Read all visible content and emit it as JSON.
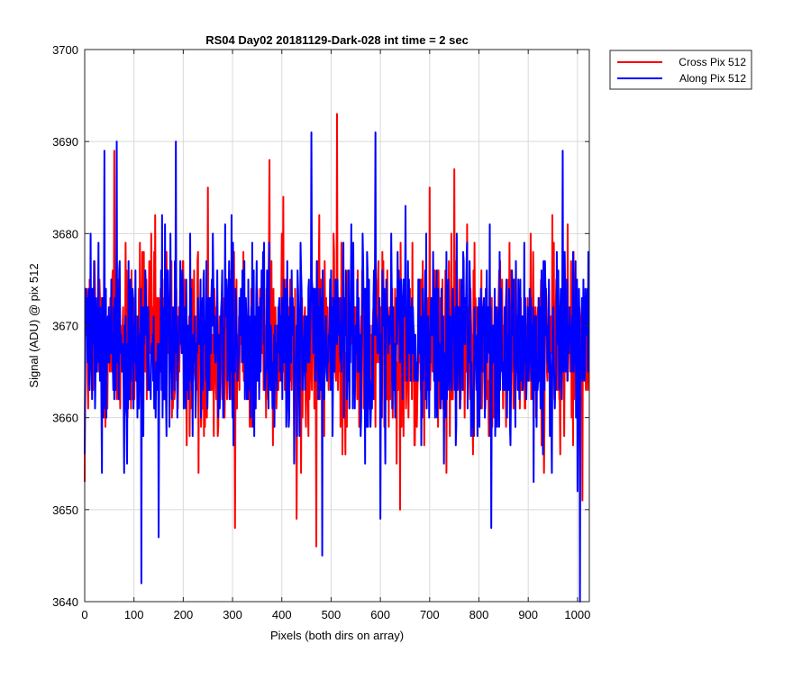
{
  "chart_data": {
    "type": "line",
    "title": "RS04 Day02 20181129-Dark-028 int time = 2 sec",
    "xlabel": "Pixels (both dirs on array)",
    "ylabel": "Signal (ADU) @ pix 512",
    "xlim": [
      0,
      1024
    ],
    "ylim": [
      3640,
      3700
    ],
    "xticks": [
      0,
      100,
      200,
      300,
      400,
      500,
      600,
      700,
      800,
      900,
      1000
    ],
    "yticks": [
      3640,
      3650,
      3660,
      3670,
      3680,
      3690,
      3700
    ],
    "grid": true,
    "legend_position": "outside top-right",
    "series": [
      {
        "name": "Cross Pix 512",
        "color": "#ff0000",
        "mean": 3668,
        "points_count": 1024,
        "key_points": [
          [
            0,
            3653
          ],
          [
            30,
            3675
          ],
          [
            60,
            3689
          ],
          [
            80,
            3670
          ],
          [
            120,
            3678
          ],
          [
            180,
            3666
          ],
          [
            250,
            3685
          ],
          [
            300,
            3670
          ],
          [
            305,
            3648
          ],
          [
            340,
            3667
          ],
          [
            375,
            3688
          ],
          [
            430,
            3649
          ],
          [
            470,
            3646
          ],
          [
            505,
            3680
          ],
          [
            512,
            3693
          ],
          [
            560,
            3668
          ],
          [
            640,
            3650
          ],
          [
            700,
            3685
          ],
          [
            750,
            3687
          ],
          [
            800,
            3668
          ],
          [
            860,
            3675
          ],
          [
            920,
            3672
          ],
          [
            980,
            3681
          ],
          [
            1010,
            3651
          ],
          [
            1024,
            3676
          ]
        ]
      },
      {
        "name": "Along Pix 512",
        "color": "#0000ff",
        "mean": 3668,
        "points_count": 1024,
        "key_points": [
          [
            0,
            3656
          ],
          [
            40,
            3689
          ],
          [
            65,
            3690
          ],
          [
            115,
            3642
          ],
          [
            150,
            3647
          ],
          [
            185,
            3690
          ],
          [
            260,
            3680
          ],
          [
            300,
            3660
          ],
          [
            380,
            3666
          ],
          [
            460,
            3691
          ],
          [
            482,
            3645
          ],
          [
            550,
            3670
          ],
          [
            590,
            3691
          ],
          [
            600,
            3649
          ],
          [
            660,
            3672
          ],
          [
            720,
            3668
          ],
          [
            780,
            3666
          ],
          [
            825,
            3648
          ],
          [
            870,
            3675
          ],
          [
            970,
            3689
          ],
          [
            1000,
            3652
          ],
          [
            1005,
            3640
          ],
          [
            1024,
            3675
          ]
        ]
      }
    ]
  }
}
